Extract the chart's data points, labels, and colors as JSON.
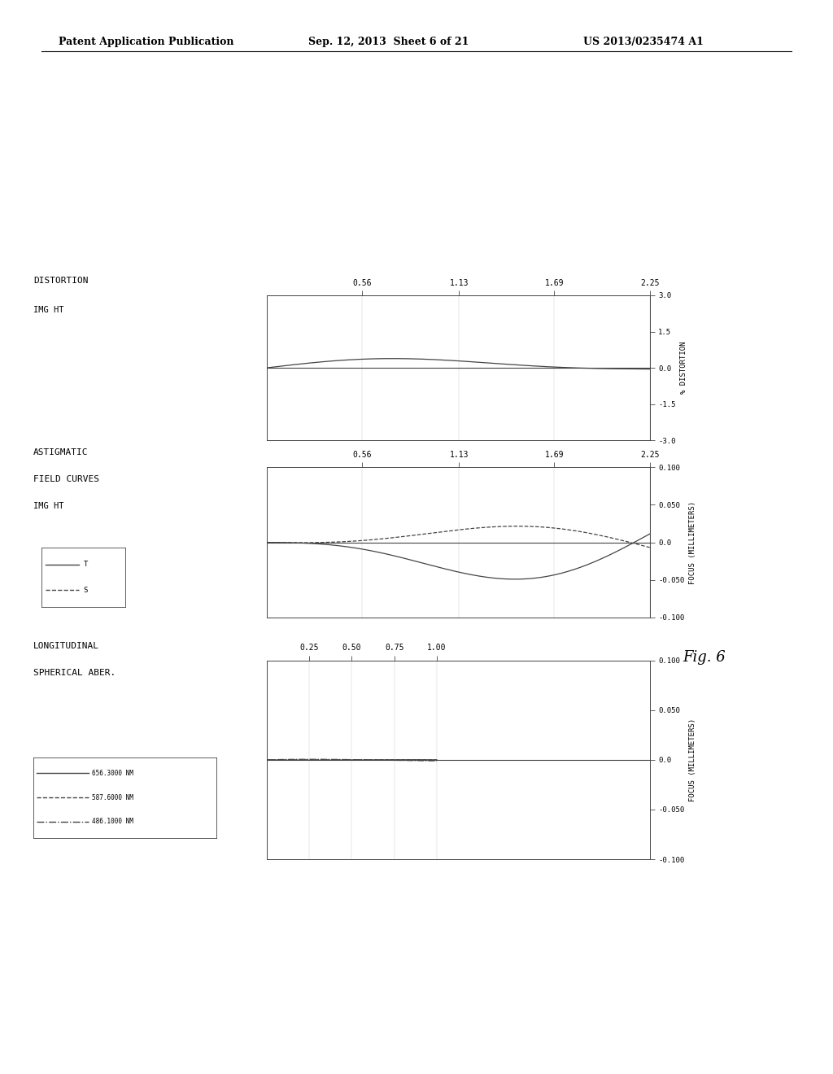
{
  "header_left": "Patent Application Publication",
  "header_center": "Sep. 12, 2013  Sheet 6 of 21",
  "header_right": "US 2013/0235474 A1",
  "fig_label": "Fig. 6",
  "plot1_title_line1": "LONGITUDINAL",
  "plot1_title_line2": "SPHERICAL ABER.",
  "plot1_ylabel": "FOCUS (MILLIMETERS)",
  "plot1_ht_ticks": [
    1.0,
    0.75,
    0.5,
    0.25
  ],
  "plot1_ht_labels": [
    "1.00",
    "0.75",
    "0.50",
    "0.25"
  ],
  "plot1_ylim": [
    -0.1,
    0.1
  ],
  "plot1_yticks": [
    -0.1,
    -0.05,
    0.0,
    0.05,
    0.1
  ],
  "plot1_ytick_labels": [
    "-0.100",
    "-0.050",
    "0.0",
    "0.050",
    "0.100"
  ],
  "plot1_legend": [
    "656.3000 NM",
    "587.6000 NM",
    "486.1000 NM"
  ],
  "plot2_title_line1": "ASTIGMATIC",
  "plot2_title_line2": "FIELD CURVES",
  "plot2_ylabel": "FOCUS (MILLIMETERS)",
  "plot2_ht_ticks": [
    2.25,
    1.69,
    1.13,
    0.56
  ],
  "plot2_ht_labels": [
    "2.25",
    "1.69",
    "1.13",
    "0.56"
  ],
  "plot2_ylim": [
    -0.1,
    0.1
  ],
  "plot2_yticks": [
    -0.1,
    -0.05,
    0.0,
    0.05,
    0.1
  ],
  "plot2_ytick_labels": [
    "-0.100",
    "-0.050",
    "0.0",
    "0.050",
    "0.100"
  ],
  "plot2_legend": [
    "T",
    "S"
  ],
  "plot3_title": "DISTORTION",
  "plot3_ylabel": "% DISTORTION",
  "plot3_ht_ticks": [
    2.25,
    1.69,
    1.13,
    0.56
  ],
  "plot3_ht_labels": [
    "2.25",
    "1.69",
    "1.13",
    "0.56"
  ],
  "plot3_ylim": [
    -3.0,
    3.0
  ],
  "plot3_yticks": [
    -3.0,
    -1.5,
    0.0,
    1.5,
    3.0
  ],
  "plot3_ytick_labels": [
    "-3.0",
    "-1.5",
    "0.0",
    "1.5",
    "3.0"
  ],
  "img_ht_label": "IMG HT",
  "line_color": "#444444",
  "bg_color": "#ffffff"
}
